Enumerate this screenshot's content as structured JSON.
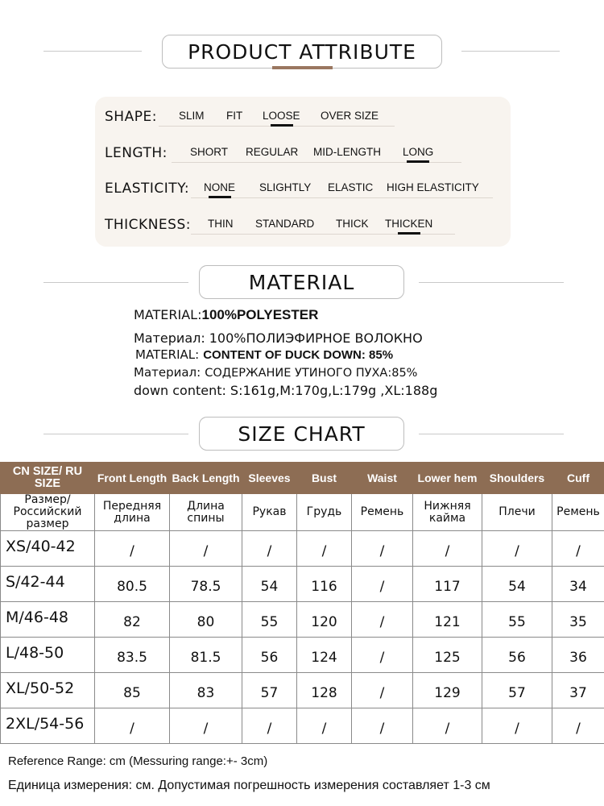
{
  "sections": {
    "product_attribute": "PRODUCT ATTRIBUTE",
    "material": "MATERIAL",
    "size_chart": "SIZE CHART"
  },
  "attributes": [
    {
      "label": "SHAPE:",
      "options": [
        {
          "text": "SLIM",
          "selected": false
        },
        {
          "text": "FIT",
          "selected": false
        },
        {
          "text": "LOOSE",
          "selected": true
        },
        {
          "text": "OVER SIZE",
          "selected": false
        }
      ]
    },
    {
      "label": "LENGTH:",
      "options": [
        {
          "text": "SHORT",
          "selected": false
        },
        {
          "text": "REGULAR",
          "selected": false
        },
        {
          "text": "MID-LENGTH",
          "selected": false
        },
        {
          "text": "LONG",
          "selected": true
        }
      ]
    },
    {
      "label": "ELASTICITY:",
      "options": [
        {
          "text": "NONE",
          "selected": true
        },
        {
          "text": "SLIGHTLY",
          "selected": false
        },
        {
          "text": "ELASTIC",
          "selected": false
        },
        {
          "text": "HIGH ELASTICITY",
          "selected": false
        }
      ]
    },
    {
      "label": "THICKNESS:",
      "options": [
        {
          "text": "THIN",
          "selected": false
        },
        {
          "text": "STANDARD",
          "selected": false
        },
        {
          "text": "THICK",
          "selected": false
        },
        {
          "text": "THICKEN",
          "selected": true
        }
      ]
    }
  ],
  "material_lines": [
    {
      "label": "MATERIAL:",
      "value": "100%POLYESTER"
    },
    {
      "label": "Материал:",
      "value": "100%ПОЛИЭФИРНОЕ ВОЛОКНО"
    },
    {
      "label": "MATERIAL:",
      "value": "CONTENT OF DUCK DOWN: 85%"
    },
    {
      "label": "Материал:",
      "value": "СОДЕРЖАНИЕ УТИНОГО ПУХА:85%"
    },
    {
      "label": "down content:",
      "value": "S:161g,M:170g,L:179g ,XL:188g"
    }
  ],
  "size_table": {
    "headers_en": [
      "CN SIZE/ RU SIZE",
      "Front Length",
      "Back Length",
      "Sleeves",
      "Bust",
      "Waist",
      "Lower hem",
      "Shoulders",
      "Cuff"
    ],
    "headers_ru": [
      "Размер/ Российский размер",
      "Передняя длина",
      "Длина спины",
      "Рукав",
      "Грудь",
      "Ремень",
      "Нижняя кайма",
      "Плечи",
      "Ремень"
    ],
    "rows": [
      [
        "XS/40-42",
        "/",
        "/",
        "/",
        "/",
        "/",
        "/",
        "/",
        "/"
      ],
      [
        "S/42-44",
        "80.5",
        "78.5",
        "54",
        "116",
        "/",
        "117",
        "54",
        "34"
      ],
      [
        "M/46-48",
        "82",
        "80",
        "55",
        "120",
        "/",
        "121",
        "55",
        "35"
      ],
      [
        "L/48-50",
        "83.5",
        "81.5",
        "56",
        "124",
        "/",
        "125",
        "56",
        "36"
      ],
      [
        "XL/50-52",
        "85",
        "83",
        "57",
        "128",
        "/",
        "129",
        "57",
        "37"
      ],
      [
        "2XL/54-56",
        "/",
        "/",
        "/",
        "/",
        "/",
        "/",
        "/",
        "/"
      ]
    ]
  },
  "footer": {
    "reference": "Reference Range: cm (Messuring range:+- 3cm)",
    "reference_ru": "Единица измерения: см. Допустимая погрешность измерения составляет 1-3 см"
  },
  "colors": {
    "header_bg": "#8d6d54",
    "accent_bar": "#9a7760",
    "panel_bg": "#f8f4ef"
  }
}
